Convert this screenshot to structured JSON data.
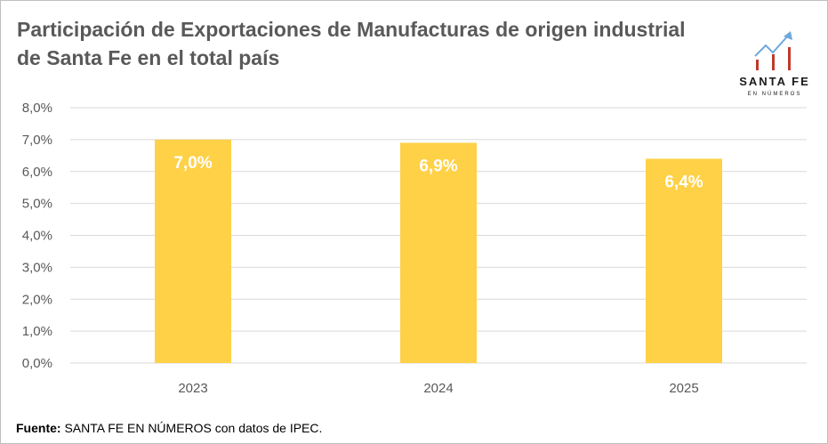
{
  "logo": {
    "name": "SANTA FE",
    "subtitle": "EN NÚMEROS",
    "icon": "growth-chart-icon"
  },
  "source": {
    "label": "Fuente:",
    "text": " SANTA FE EN NÚMEROS con datos de IPEC."
  },
  "colors": {
    "bar": "#ffd147",
    "grid": "#d9d9d9",
    "axis_text": "#595959",
    "data_label": "#ffffff",
    "logo_bars": "#c0392b",
    "logo_arrow": "#6fa8dc"
  },
  "chart_data": {
    "type": "bar",
    "title": "Participación de Exportaciones de Manufacturas de origen industrial de Santa Fe en el total país",
    "categories": [
      "2023",
      "2024",
      "2025"
    ],
    "values": [
      7.0,
      6.9,
      6.4
    ],
    "data_labels": [
      "7,0%",
      "6,9%",
      "6,4%"
    ],
    "y_ticks": [
      "0,0%",
      "1,0%",
      "2,0%",
      "3,0%",
      "4,0%",
      "5,0%",
      "6,0%",
      "7,0%",
      "8,0%"
    ],
    "ylim": [
      0,
      8
    ],
    "y_step": 1,
    "grid": true,
    "legend": "none",
    "xlabel": "",
    "ylabel": ""
  }
}
